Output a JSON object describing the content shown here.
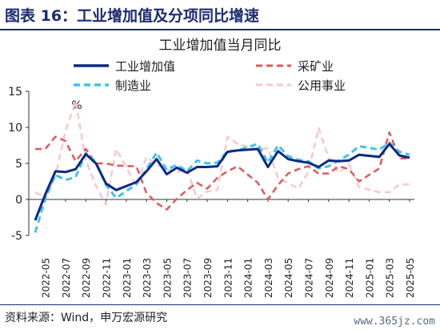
{
  "figure": {
    "title": "图表 16：工业增加值及分项同比增速",
    "source": "资料来源：Wind，申万宏源研究",
    "watermark": "www.365jz.com",
    "colors": {
      "title": "#1b2c72"
    }
  },
  "chart_data": {
    "type": "line",
    "title": "工业增加值当月同比",
    "unit_label": "%",
    "xlabel": "",
    "ylabel": "",
    "ylim": [
      -5,
      15
    ],
    "yticks": [
      -5,
      0,
      5,
      10,
      15
    ],
    "x_tick_labels": [
      "2022-05",
      "2022-07",
      "2022-09",
      "2022-11",
      "2023-01",
      "2023-03",
      "2023-05",
      "2023-07",
      "2023-09",
      "2023-11",
      "2024-01",
      "2024-03",
      "2024-05",
      "2024-07",
      "2024-09",
      "2024-11",
      "2025-01",
      "2025-03",
      "2025-05"
    ],
    "x": [
      "2022-04",
      "2022-05",
      "2022-06",
      "2022-07",
      "2022-08",
      "2022-09",
      "2022-10",
      "2022-11",
      "2022-12",
      "2023-01",
      "2023-02",
      "2023-03",
      "2023-04",
      "2023-05",
      "2023-06",
      "2023-07",
      "2023-08",
      "2023-09",
      "2023-10",
      "2023-11",
      "2023-12",
      "2024-01",
      "2024-02",
      "2024-03",
      "2024-04",
      "2024-05",
      "2024-06",
      "2024-07",
      "2024-08",
      "2024-09",
      "2024-10",
      "2024-11",
      "2024-12",
      "2025-01",
      "2025-02",
      "2025-03",
      "2025-04",
      "2025-05"
    ],
    "grid": false,
    "legend": "top",
    "series": [
      {
        "name": "工业增加值",
        "color": "#0b2a80",
        "dash": "solid",
        "width": 3,
        "values": [
          -2.9,
          0.7,
          3.9,
          3.8,
          4.2,
          6.3,
          5.0,
          2.2,
          1.3,
          null,
          2.4,
          3.9,
          5.6,
          3.5,
          4.4,
          3.7,
          4.5,
          4.5,
          4.6,
          6.6,
          6.8,
          null,
          7.0,
          4.5,
          6.7,
          5.6,
          5.3,
          5.1,
          4.5,
          5.4,
          5.3,
          5.4,
          6.2,
          null,
          5.9,
          7.7,
          6.1,
          5.8
        ]
      },
      {
        "name": "采矿业",
        "color": "#e05a5a",
        "dash": "dashed",
        "width": 2.5,
        "values": [
          7.0,
          7.0,
          8.7,
          8.1,
          5.3,
          7.0,
          5.0,
          5.0,
          4.7,
          null,
          4.6,
          0.9,
          -0.5,
          -1.4,
          0.1,
          1.3,
          2.3,
          1.5,
          3.0,
          3.9,
          4.6,
          null,
          2.3,
          0.0,
          2.0,
          3.6,
          4.2,
          4.6,
          3.6,
          3.6,
          4.6,
          4.2,
          2.5,
          null,
          4.3,
          9.3,
          5.7,
          5.7
        ]
      },
      {
        "name": "制造业",
        "color": "#3fc2f0",
        "dash": "dashed",
        "width": 3,
        "values": [
          -4.6,
          0.1,
          3.4,
          2.7,
          3.1,
          6.4,
          5.2,
          2.0,
          0.2,
          null,
          2.1,
          4.2,
          6.5,
          4.1,
          4.8,
          3.9,
          5.4,
          5.0,
          5.1,
          6.7,
          6.8,
          null,
          7.7,
          5.1,
          7.5,
          6.0,
          5.5,
          5.3,
          4.3,
          4.6,
          5.4,
          6.2,
          7.4,
          null,
          6.9,
          7.9,
          6.6,
          6.2
        ]
      },
      {
        "name": "公用事业",
        "color": "#f8c8cc",
        "dash": "dashed",
        "width": 2.5,
        "values": [
          1.0,
          0.2,
          3.2,
          9.5,
          13.6,
          5.5,
          1.9,
          -0.7,
          7.0,
          null,
          1.9,
          5.9,
          4.8,
          4.2,
          3.8,
          4.2,
          0.1,
          1.1,
          1.3,
          8.7,
          7.7,
          null,
          6.9,
          7.1,
          2.9,
          2.3,
          1.5,
          3.8,
          9.9,
          5.8,
          3.7,
          4.9,
          1.7,
          null,
          1.0,
          1.0,
          2.1,
          2.1
        ]
      }
    ]
  }
}
